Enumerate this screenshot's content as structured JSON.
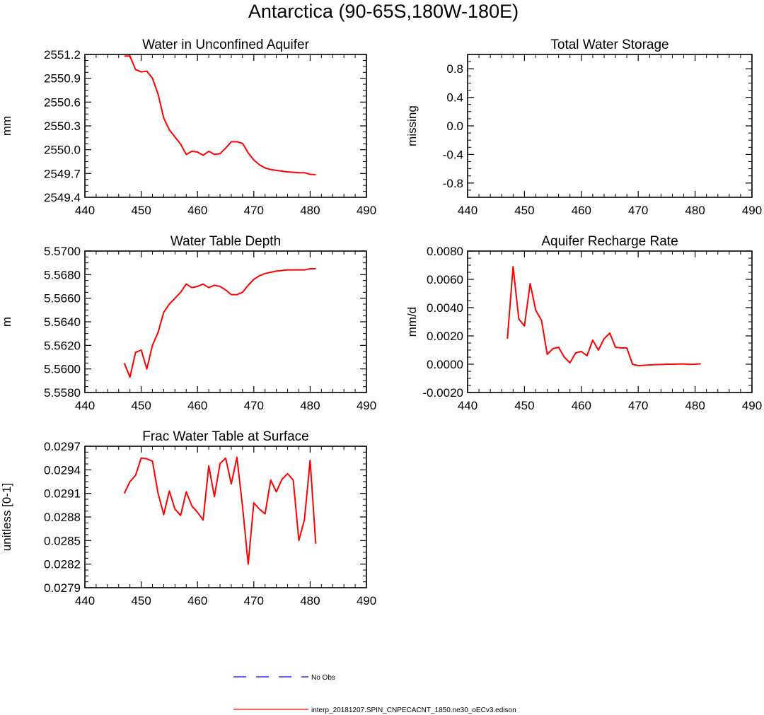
{
  "title": "Antarctica (90-65S,180W-180E)",
  "colors": {
    "model": "#ff0000",
    "obs": "#0000ff"
  },
  "legend": [
    {
      "label": "No Obs",
      "style": "dashed",
      "color": "#0000ff"
    },
    {
      "label": "interp_20181207.SPIN_CNPECACNT_1850.ne30_oECv3.edison",
      "style": "solid",
      "color": "#ff0000"
    }
  ],
  "chart_data": [
    {
      "id": "water-unconfined-aquifer",
      "type": "line",
      "title": "Water in Unconfined Aquifer",
      "ylabel": "mm",
      "xlim": [
        440,
        490
      ],
      "xticks": [
        "440",
        "450",
        "460",
        "470",
        "480",
        "490"
      ],
      "ylim": [
        2549.4,
        2551.2
      ],
      "yticks": [
        "2549.4",
        "2549.7",
        "2550.0",
        "2550.3",
        "2550.6",
        "2550.9",
        "2551.2"
      ],
      "x": [
        447,
        448,
        449,
        450,
        451,
        452,
        453,
        454,
        455,
        456,
        457,
        458,
        459,
        460,
        461,
        462,
        463,
        464,
        465,
        466,
        467,
        468,
        469,
        470,
        471,
        472,
        473,
        474,
        475,
        476,
        477,
        478,
        479,
        480,
        481
      ],
      "series": [
        {
          "name": "model",
          "values": [
            2551.18,
            2551.18,
            2551.01,
            2550.98,
            2550.99,
            2550.9,
            2550.7,
            2550.4,
            2550.25,
            2550.16,
            2550.07,
            2549.94,
            2549.98,
            2549.97,
            2549.93,
            2549.98,
            2549.94,
            2549.95,
            2550.02,
            2550.1,
            2550.1,
            2550.08,
            2549.96,
            2549.87,
            2549.81,
            2549.77,
            2549.75,
            2549.74,
            2549.73,
            2549.72,
            2549.715,
            2549.71,
            2549.71,
            2549.69,
            2549.685
          ]
        }
      ]
    },
    {
      "id": "total-water-storage",
      "type": "line",
      "title": "Total Water Storage",
      "ylabel": "missing",
      "xlim": [
        440,
        490
      ],
      "xticks": [
        "440",
        "450",
        "460",
        "470",
        "480",
        "490"
      ],
      "ylim": [
        -1,
        1
      ],
      "yticks": [
        "-0.8",
        "-0.4",
        "0.0",
        "0.4",
        "0.8"
      ],
      "x": [],
      "series": []
    },
    {
      "id": "water-table-depth",
      "type": "line",
      "title": "Water Table Depth",
      "ylabel": "m",
      "xlim": [
        440,
        490
      ],
      "xticks": [
        "440",
        "450",
        "460",
        "470",
        "480",
        "490"
      ],
      "ylim": [
        5.558,
        5.57
      ],
      "yticks": [
        "5.5580",
        "5.5600",
        "5.5620",
        "5.5640",
        "5.5660",
        "5.5680",
        "5.5700"
      ],
      "x": [
        447,
        448,
        449,
        450,
        451,
        452,
        453,
        454,
        455,
        456,
        457,
        458,
        459,
        460,
        461,
        462,
        463,
        464,
        465,
        466,
        467,
        468,
        469,
        470,
        471,
        472,
        473,
        474,
        475,
        476,
        477,
        478,
        479,
        480,
        481
      ],
      "series": [
        {
          "name": "model",
          "values": [
            5.5605,
            5.5593,
            5.5614,
            5.5616,
            5.56,
            5.562,
            5.5631,
            5.5648,
            5.5655,
            5.566,
            5.5665,
            5.5672,
            5.5669,
            5.567,
            5.5672,
            5.5669,
            5.5671,
            5.567,
            5.5667,
            5.5663,
            5.5663,
            5.5665,
            5.5671,
            5.5676,
            5.5679,
            5.5681,
            5.5682,
            5.5683,
            5.56835,
            5.5684,
            5.5684,
            5.5684,
            5.5684,
            5.5685,
            5.5685
          ]
        }
      ]
    },
    {
      "id": "aquifer-recharge-rate",
      "type": "line",
      "title": "Aquifer Recharge Rate",
      "ylabel": "mm/d",
      "xlim": [
        440,
        490
      ],
      "xticks": [
        "440",
        "450",
        "460",
        "470",
        "480",
        "490"
      ],
      "ylim": [
        -0.002,
        0.008
      ],
      "yticks": [
        "-0.0020",
        "0.0000",
        "0.0020",
        "0.0040",
        "0.0060",
        "0.0080"
      ],
      "x": [
        447,
        448,
        449,
        450,
        451,
        452,
        453,
        454,
        455,
        456,
        457,
        458,
        459,
        460,
        461,
        462,
        463,
        464,
        465,
        466,
        467,
        468,
        469,
        470,
        471,
        472,
        473,
        474,
        475,
        476,
        477,
        478,
        479,
        480,
        481
      ],
      "series": [
        {
          "name": "model",
          "values": [
            0.0018,
            0.0069,
            0.0032,
            0.0027,
            0.0057,
            0.0038,
            0.0031,
            0.0007,
            0.0011,
            0.0012,
            0.0005,
            0.0001,
            0.0008,
            0.0009,
            0.0006,
            0.0017,
            0.001,
            0.0018,
            0.0022,
            0.0012,
            0.00115,
            0.00115,
            0.0,
            -0.0001,
            -8e-05,
            -5e-05,
            -3e-05,
            -2e-05,
            0.0,
            0.0,
            1e-05,
            2e-05,
            -1e-05,
            0.0,
            3e-05
          ]
        }
      ]
    },
    {
      "id": "frac-water-table-surface",
      "type": "line",
      "title": "Frac Water Table at Surface",
      "ylabel": "unitless [0-1]",
      "xlim": [
        440,
        490
      ],
      "xticks": [
        "440",
        "450",
        "460",
        "470",
        "480",
        "490"
      ],
      "ylim": [
        0.0279,
        0.0297
      ],
      "yticks": [
        "0.0279",
        "0.0282",
        "0.0285",
        "0.0288",
        "0.0291",
        "0.0294",
        "0.0297"
      ],
      "x": [
        447,
        448,
        449,
        450,
        451,
        452,
        453,
        454,
        455,
        456,
        457,
        458,
        459,
        460,
        461,
        462,
        463,
        464,
        465,
        466,
        467,
        468,
        469,
        470,
        471,
        472,
        473,
        474,
        475,
        476,
        477,
        478,
        479,
        480,
        481
      ],
      "series": [
        {
          "name": "model",
          "values": [
            0.0291,
            0.02925,
            0.02933,
            0.02955,
            0.02954,
            0.02951,
            0.0291,
            0.02883,
            0.02913,
            0.0289,
            0.02882,
            0.02912,
            0.02894,
            0.02886,
            0.02876,
            0.02945,
            0.02906,
            0.02948,
            0.02955,
            0.02922,
            0.02956,
            0.02893,
            0.0282,
            0.02898,
            0.0289,
            0.02884,
            0.02927,
            0.02912,
            0.02928,
            0.02935,
            0.02927,
            0.0285,
            0.02877,
            0.02952,
            0.02846
          ]
        }
      ]
    }
  ]
}
